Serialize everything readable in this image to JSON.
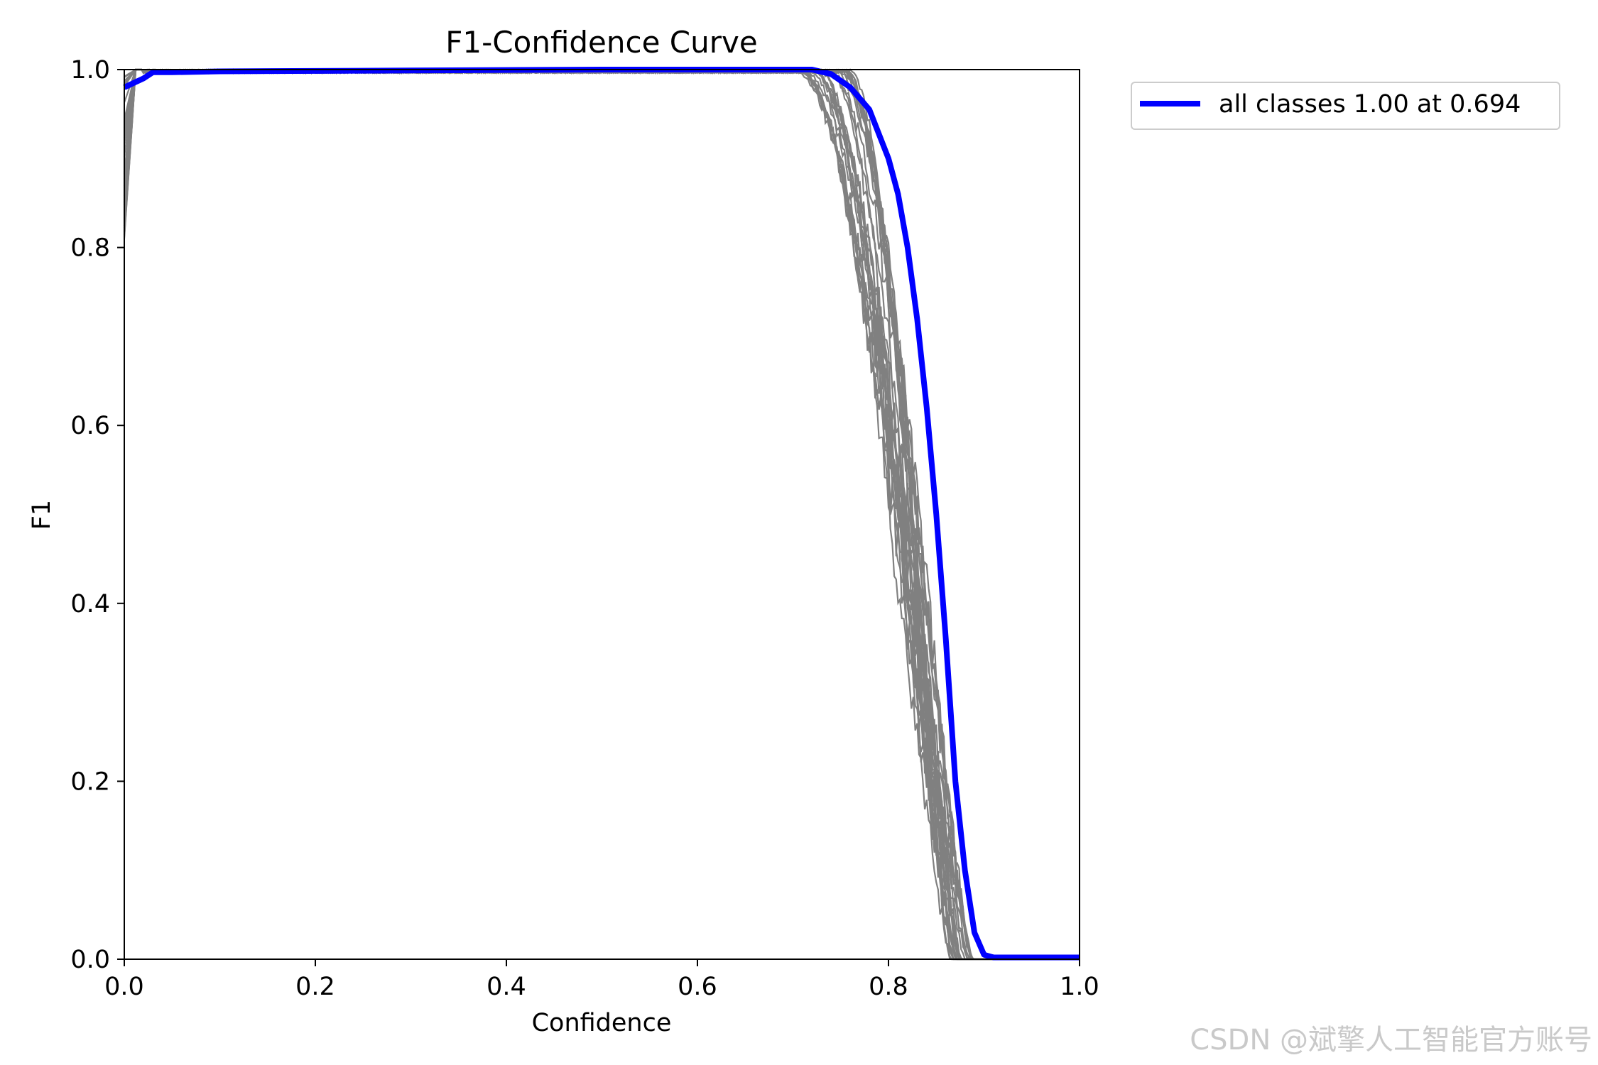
{
  "chart_data": {
    "type": "line",
    "title": "F1-Confidence Curve",
    "xlabel": "Confidence",
    "ylabel": "F1",
    "xlim": [
      0.0,
      1.0
    ],
    "ylim": [
      0.0,
      1.0
    ],
    "xticks": [
      "0.0",
      "0.2",
      "0.4",
      "0.6",
      "0.8",
      "1.0"
    ],
    "yticks": [
      "0.0",
      "0.2",
      "0.4",
      "0.6",
      "0.8",
      "1.0"
    ],
    "grid": false,
    "legend_position": "outside-top-right",
    "series": [
      {
        "name": "all classes 1.00 at 0.694",
        "color": "#0000ff",
        "x": [
          0.0,
          0.01,
          0.02,
          0.03,
          0.05,
          0.1,
          0.3,
          0.5,
          0.7,
          0.72,
          0.74,
          0.76,
          0.78,
          0.8,
          0.81,
          0.82,
          0.83,
          0.84,
          0.85,
          0.86,
          0.87,
          0.88,
          0.89,
          0.9,
          0.91,
          0.95,
          1.0
        ],
        "y": [
          0.98,
          0.985,
          0.99,
          0.997,
          0.997,
          0.998,
          0.999,
          1.0,
          1.0,
          1.0,
          0.995,
          0.98,
          0.955,
          0.9,
          0.86,
          0.8,
          0.72,
          0.62,
          0.5,
          0.36,
          0.2,
          0.1,
          0.03,
          0.005,
          0.002,
          0.002,
          0.002
        ]
      }
    ],
    "class_curves": {
      "color": "#808080",
      "count": 30,
      "shape": "each stays near 1.0 until about 0.70-0.75 confidence, then drops to 0 between about 0.86 and 0.89"
    }
  },
  "watermark": "CSDN @斌擎人工智能官方账号"
}
